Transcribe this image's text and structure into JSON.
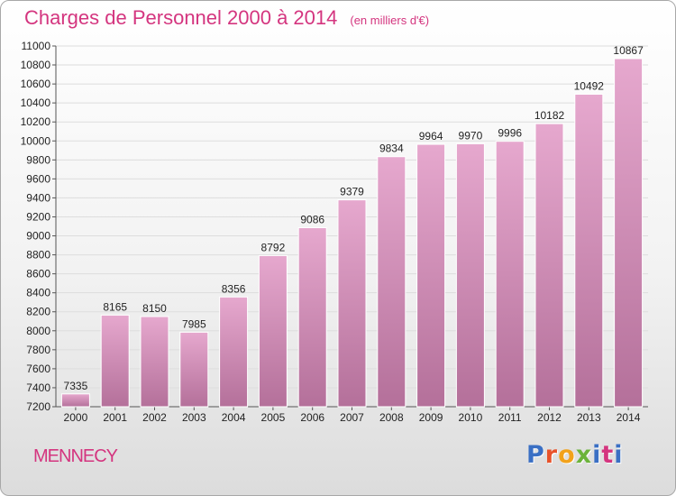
{
  "header": {
    "title": "Charges de Personnel 2000 à 2014",
    "subtitle": "(en milliers d'€)"
  },
  "footer": {
    "city": "MENNECY",
    "logo_text": "Proxiti"
  },
  "colors": {
    "title": "#d4357f",
    "bar_top": "#e6a8ce",
    "bar_bottom": "#b4709a",
    "logo": [
      "#3a6fc4",
      "#e8522a",
      "#f2a21b",
      "#6bb33a",
      "#3a6fc4",
      "#d4357f",
      "#3a6fc4"
    ]
  },
  "chart_data": {
    "type": "bar",
    "categories": [
      "2000",
      "2001",
      "2002",
      "2003",
      "2004",
      "2005",
      "2006",
      "2007",
      "2008",
      "2009",
      "2010",
      "2011",
      "2012",
      "2013",
      "2014"
    ],
    "values": [
      7335,
      8165,
      8150,
      7985,
      8356,
      8792,
      9086,
      9379,
      9834,
      9964,
      9970,
      9996,
      10182,
      10492,
      10867
    ],
    "data_labels": [
      "7335",
      "8165",
      "8150",
      "7985",
      "8356",
      "8792",
      "9086",
      "9379",
      "9834",
      "9964",
      "9970",
      "9996",
      "10182",
      "10492",
      "10867"
    ],
    "title": "Charges de Personnel 2000 à 2014",
    "xlabel": "",
    "ylabel": "",
    "ylim": [
      7200,
      11000
    ],
    "yticks": [
      7200,
      7400,
      7600,
      7800,
      8000,
      8200,
      8400,
      8600,
      8800,
      9000,
      9200,
      9400,
      9600,
      9800,
      10000,
      10200,
      10400,
      10600,
      10800,
      11000
    ],
    "grid": true,
    "legend": "none"
  }
}
